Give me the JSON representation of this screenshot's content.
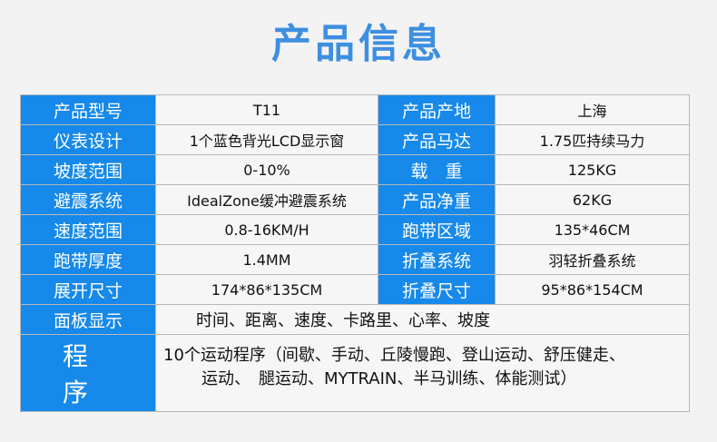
{
  "title": "产品信息",
  "rows": [
    {
      "l1": "产品型号",
      "v1": "T11",
      "l2": "产品产地",
      "v2": "上海"
    },
    {
      "l1": "仪表设计",
      "v1": "1个蓝色背光LCD显示窗",
      "l2": "产品马达",
      "v2": "1.75匹持续马力"
    },
    {
      "l1": "坡度范围",
      "v1": "0-10%",
      "l2": "载　重",
      "v2": "125KG"
    },
    {
      "l1": "避震系统",
      "v1": "IdealZone缓冲避震系统",
      "l2": "产品净重",
      "v2": "62KG"
    },
    {
      "l1": "速度范围",
      "v1": "0.8-16KM/H",
      "l2": "跑带区域",
      "v2": "135*46CM"
    },
    {
      "l1": "跑带厚度",
      "v1": "1.4MM",
      "l2": "折叠系统",
      "v2": "羽轻折叠系统"
    },
    {
      "l1": "展开尺寸",
      "v1": "174*86*135CM",
      "l2": "折叠尺寸",
      "v2": "95*86*154CM"
    }
  ],
  "panel": {
    "label": "面板显示",
    "value": "时间、距离、速度、卡路里、心率、坡度"
  },
  "program": {
    "label": "程序",
    "line1": "10个运动程序（间歇、手动、丘陵慢跑、登山运动、舒压健走、",
    "line2": "运动、　腿运动、MYTRAIN、半马训练、体能测试）"
  }
}
